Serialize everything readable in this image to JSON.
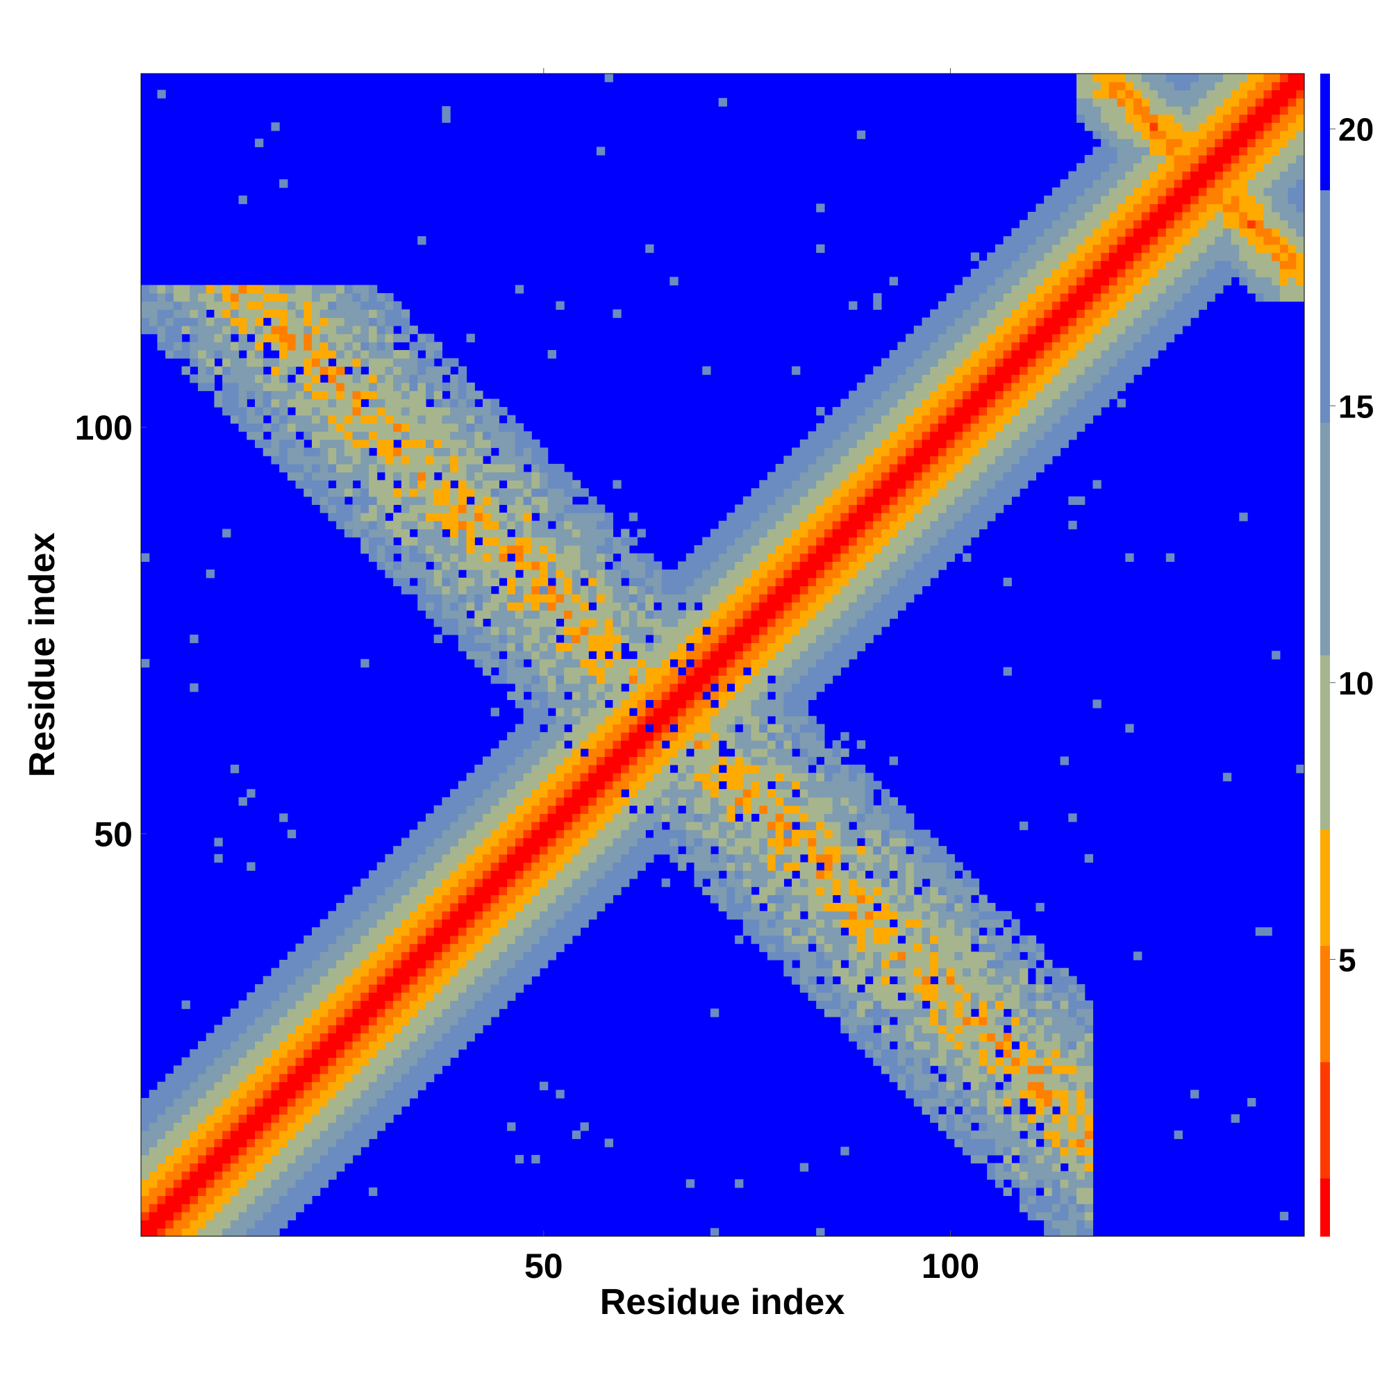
{
  "chart_data": {
    "type": "heatmap",
    "title": "",
    "xlabel": "Residue index",
    "ylabel": "Residue index",
    "n_residues": 143,
    "x_range": [
      1,
      143
    ],
    "y_range": [
      1,
      143
    ],
    "x_ticks": [
      50,
      100
    ],
    "y_ticks": [
      50,
      100
    ],
    "colorbar": {
      "ticks": [
        5,
        10,
        15,
        20
      ],
      "range": [
        0,
        21
      ],
      "levels": 20
    },
    "colorscale": [
      "#ff0000",
      "#ff3a00",
      "#ff7f00",
      "#ffaa00",
      "#a6b58e",
      "#7f9cb0",
      "#6a8cc0",
      "#0000ff"
    ],
    "contact_regions": {
      "main_diagonal": "i = j, distance ~0–3",
      "anti_diagonal_band": "i + j ≈ 130, spanning residues ~1–116 (X-shaped crossing near residue 65)",
      "upper_right_anti_band": "i + j ≈ 262, residues ~118–143"
    },
    "grid": false,
    "legend": "colorbar-right"
  }
}
